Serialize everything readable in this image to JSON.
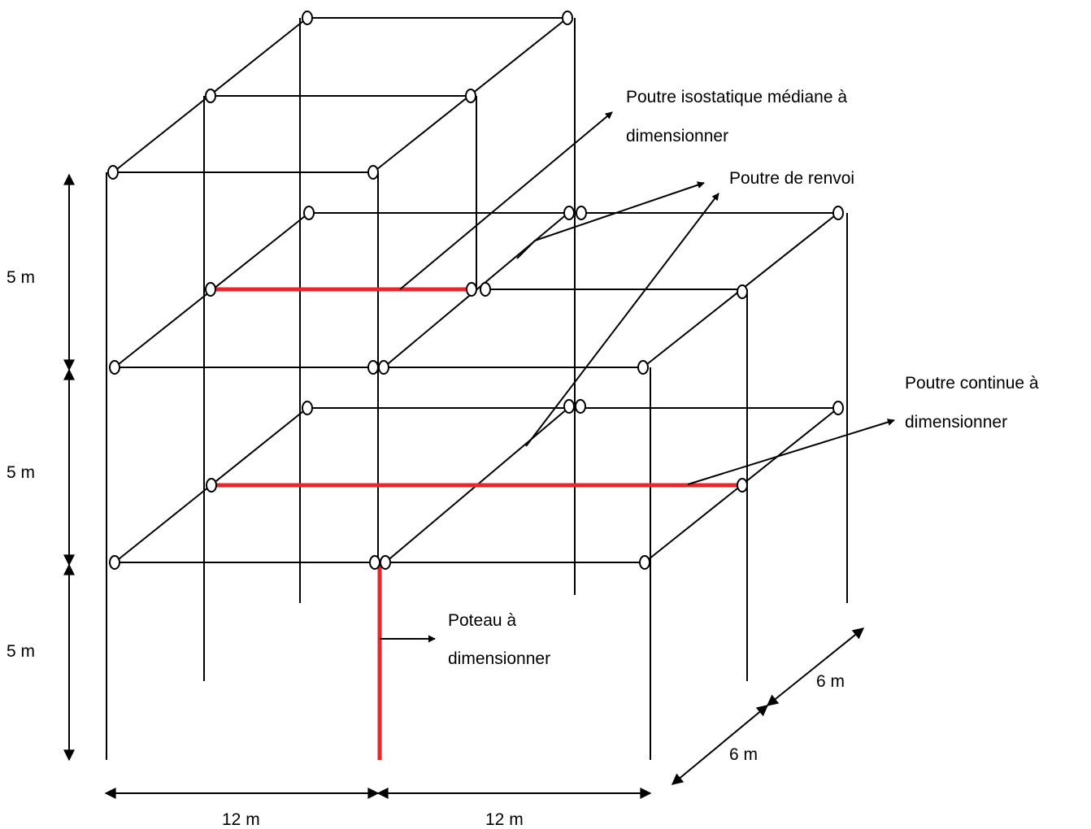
{
  "labels": {
    "poutre_isostatique_line1": "Poutre isostatique médiane à",
    "poutre_isostatique_line2": "dimensionner",
    "poutre_renvoi": "Poutre de renvoi",
    "poutre_continue_line1": "Poutre continue à",
    "poutre_continue_line2": "dimensionner",
    "poteau_line1": "Poteau à",
    "poteau_line2": "dimensionner"
  },
  "dimensions": {
    "height_top": "5 m",
    "height_middle": "5 m",
    "height_bottom": "5 m",
    "width_left": "12 m",
    "width_right": "12 m",
    "depth_front": "6 m",
    "depth_back": "6 m"
  },
  "colors": {
    "highlight": "#e8262b",
    "line": "#000000"
  }
}
